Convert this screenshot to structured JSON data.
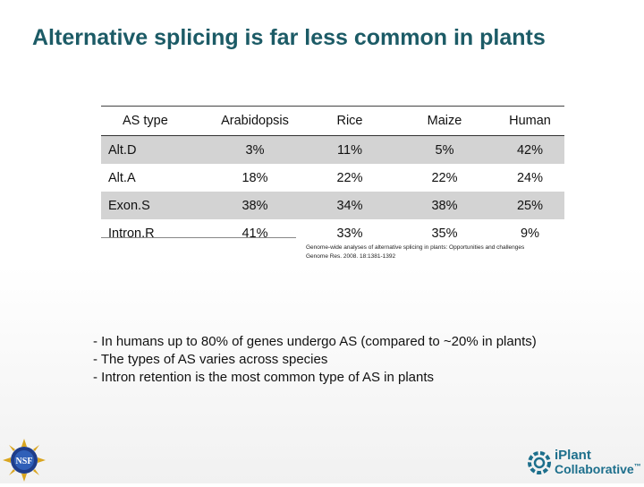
{
  "title": "Alternative splicing is far less common in plants",
  "table": {
    "headers": [
      "AS type",
      "Arabidopsis",
      "Rice",
      "Maize",
      "Human"
    ],
    "rows": [
      {
        "type": "Alt.D",
        "values": [
          "3%",
          "11%",
          "5%",
          "42%"
        ]
      },
      {
        "type": "Alt.A",
        "values": [
          "18%",
          "22%",
          "22%",
          "24%"
        ]
      },
      {
        "type": "Exon.S",
        "values": [
          "38%",
          "34%",
          "38%",
          "25%"
        ]
      },
      {
        "type": "Intron.R",
        "values": [
          "41%",
          "33%",
          "35%",
          "9%"
        ]
      }
    ]
  },
  "citation": {
    "line1": "Genome-wide analyses of alternative splicing in plants: Opportunities and challenges",
    "line2": "Genome Res. 2008. 18:1381-1392"
  },
  "bullets": [
    "- In humans up to 80% of genes undergo AS (compared to ~20% in plants)",
    "- The types of AS varies across species",
    "- Intron retention is the most common type of AS in plants"
  ],
  "logos": {
    "nsf_text": "NSF",
    "iplant_line1": "iPlant",
    "iplant_line2": "Collaborative",
    "iplant_tm": "™",
    "nsf_color": "#1f3d8a",
    "iplant_color": "#1d6f8c"
  }
}
